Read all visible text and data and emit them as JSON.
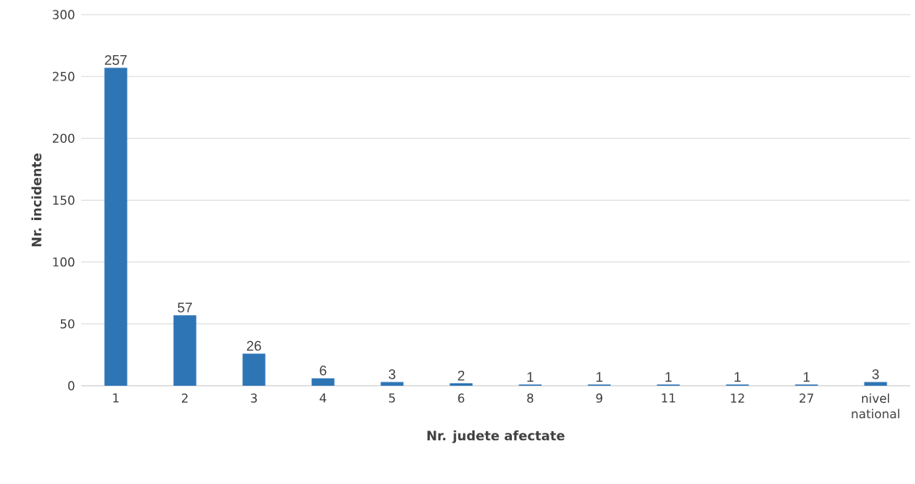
{
  "chart_data": {
    "type": "bar",
    "xlabel": "Nr. judete afectate",
    "ylabel": "Nr. incidente",
    "categories": [
      "1",
      "2",
      "3",
      "4",
      "5",
      "6",
      "8",
      "9",
      "11",
      "12",
      "27",
      "nivel national"
    ],
    "values": [
      257,
      57,
      26,
      6,
      3,
      2,
      1,
      1,
      1,
      1,
      1,
      3
    ],
    "color": "#2e75b6",
    "ylim": [
      0,
      300
    ],
    "yticks": [
      0,
      50,
      100,
      150,
      200,
      250,
      300
    ],
    "grid": "y",
    "data_labels": true
  }
}
